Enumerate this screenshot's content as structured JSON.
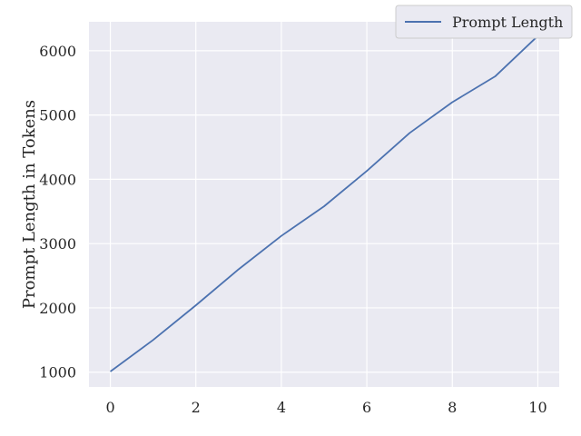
{
  "chart_data": {
    "type": "line",
    "title": "",
    "xlabel": "",
    "ylabel": "Prompt Length in Tokens",
    "xlim": [
      -0.5,
      10.5
    ],
    "ylim": [
      770,
      6450
    ],
    "xticks": [
      0,
      2,
      4,
      6,
      8,
      10
    ],
    "yticks": [
      1000,
      2000,
      3000,
      4000,
      5000,
      6000
    ],
    "grid": true,
    "legend_position": "top-right",
    "series": [
      {
        "name": "Prompt Length",
        "color": "#4c72b0",
        "x": [
          0,
          1,
          2,
          3,
          4,
          5,
          6,
          7,
          8,
          9,
          10
        ],
        "y": [
          1010,
          1500,
          2040,
          2600,
          3120,
          3580,
          4130,
          4720,
          5200,
          5600,
          6230
        ]
      }
    ],
    "colors": {
      "plot_background": "#eaeaf2",
      "grid": "#ffffff",
      "text": "#262626"
    }
  }
}
